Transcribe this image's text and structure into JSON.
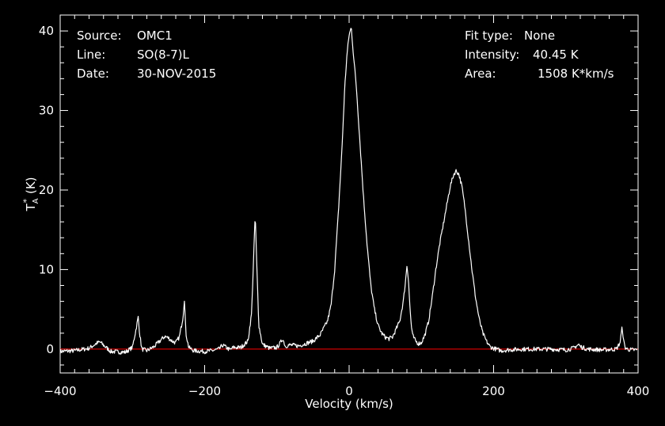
{
  "chart_data": {
    "type": "line",
    "xlabel": "Velocity (km/s)",
    "ylabel_main": "T",
    "ylabel_sub": "A",
    "ylabel_sup": "*",
    "ylabel_unit": "(K)",
    "xlim": [
      -400,
      400
    ],
    "ylim": [
      -3,
      42
    ],
    "x_ticks": [
      -400,
      -200,
      0,
      200,
      400
    ],
    "y_ticks": [
      0,
      10,
      20,
      30,
      40
    ],
    "grid": false,
    "baseline": 0,
    "colors": {
      "spectrum": "#ffffff",
      "baseline": "#ff0000",
      "axes": "#ffffff"
    },
    "info_left": [
      {
        "key": "Source:",
        "value": "OMC1"
      },
      {
        "key": "Line:",
        "value": "SO(8-7)L"
      },
      {
        "key": "Date:",
        "value": "30-NOV-2015"
      }
    ],
    "info_right": [
      {
        "key": "Fit type:",
        "value": "None"
      },
      {
        "key": "Intensity:",
        "value": "40.45 K"
      },
      {
        "key": "Area:",
        "value": "1508 K*km/s"
      }
    ],
    "series": [
      {
        "x": [
          -400,
          -380,
          -360,
          -350,
          -345,
          -340,
          -330,
          -310,
          -300,
          -295,
          -292,
          -290,
          -287,
          -280,
          -270,
          -260,
          -255,
          -250,
          -245,
          -240,
          -235,
          -230,
          -228,
          -226,
          -222,
          -215,
          -200,
          -190,
          -180,
          -175,
          -170,
          -165,
          -160,
          -150,
          -140,
          -135,
          -132,
          -130,
          -128,
          -125,
          -120,
          -110,
          -100,
          -95,
          -92,
          -90,
          -88,
          -85,
          -80,
          -70,
          -60,
          -50,
          -40,
          -30,
          -25,
          -20,
          -15,
          -10,
          -6,
          -3,
          0,
          3,
          6,
          10,
          15,
          20,
          25,
          30,
          35,
          40,
          45,
          50,
          55,
          60,
          65,
          70,
          75,
          78,
          80,
          82,
          84,
          86,
          88,
          92,
          96,
          100,
          105,
          110,
          115,
          120,
          125,
          130,
          135,
          140,
          145,
          148,
          152,
          156,
          160,
          165,
          170,
          175,
          180,
          185,
          190,
          195,
          200,
          210,
          220,
          240,
          260,
          280,
          300,
          310,
          318,
          320,
          330,
          350,
          370,
          375,
          378,
          380,
          382,
          385,
          390,
          400
        ],
        "y": [
          -0.3,
          -0.2,
          0.1,
          0.7,
          0.9,
          0.5,
          -0.3,
          -0.4,
          0.2,
          2.5,
          4.0,
          2.0,
          0.0,
          -0.2,
          0.3,
          1.2,
          1.6,
          1.4,
          1.0,
          0.8,
          1.5,
          4.0,
          6.3,
          2.0,
          0.2,
          -0.2,
          -0.3,
          -0.2,
          0.0,
          0.5,
          0.2,
          -0.1,
          0.2,
          0.2,
          1.0,
          4.5,
          12.0,
          17.0,
          11.0,
          3.0,
          0.6,
          0.1,
          0.2,
          0.8,
          1.3,
          0.8,
          0.3,
          0.5,
          0.5,
          0.4,
          0.7,
          1.0,
          1.8,
          3.5,
          5.5,
          10.0,
          17.0,
          25.0,
          33.0,
          37.0,
          39.5,
          40.45,
          37.0,
          33.0,
          26.0,
          19.0,
          13.0,
          8.0,
          5.0,
          3.0,
          2.0,
          1.5,
          1.3,
          1.5,
          2.5,
          3.5,
          6.0,
          8.5,
          10.5,
          9.0,
          5.5,
          3.0,
          1.7,
          1.0,
          0.7,
          0.8,
          1.8,
          3.5,
          6.5,
          10.0,
          13.0,
          15.5,
          18.0,
          20.5,
          22.0,
          22.4,
          22.0,
          20.5,
          18.0,
          14.0,
          10.0,
          6.5,
          3.8,
          2.0,
          1.0,
          0.3,
          0.1,
          -0.2,
          -0.1,
          0.0,
          0.0,
          0.0,
          -0.1,
          0.1,
          0.6,
          0.3,
          0.0,
          -0.1,
          0.0,
          0.8,
          2.8,
          1.0,
          0.2,
          0.0,
          -0.1,
          -0.1
        ]
      }
    ]
  }
}
